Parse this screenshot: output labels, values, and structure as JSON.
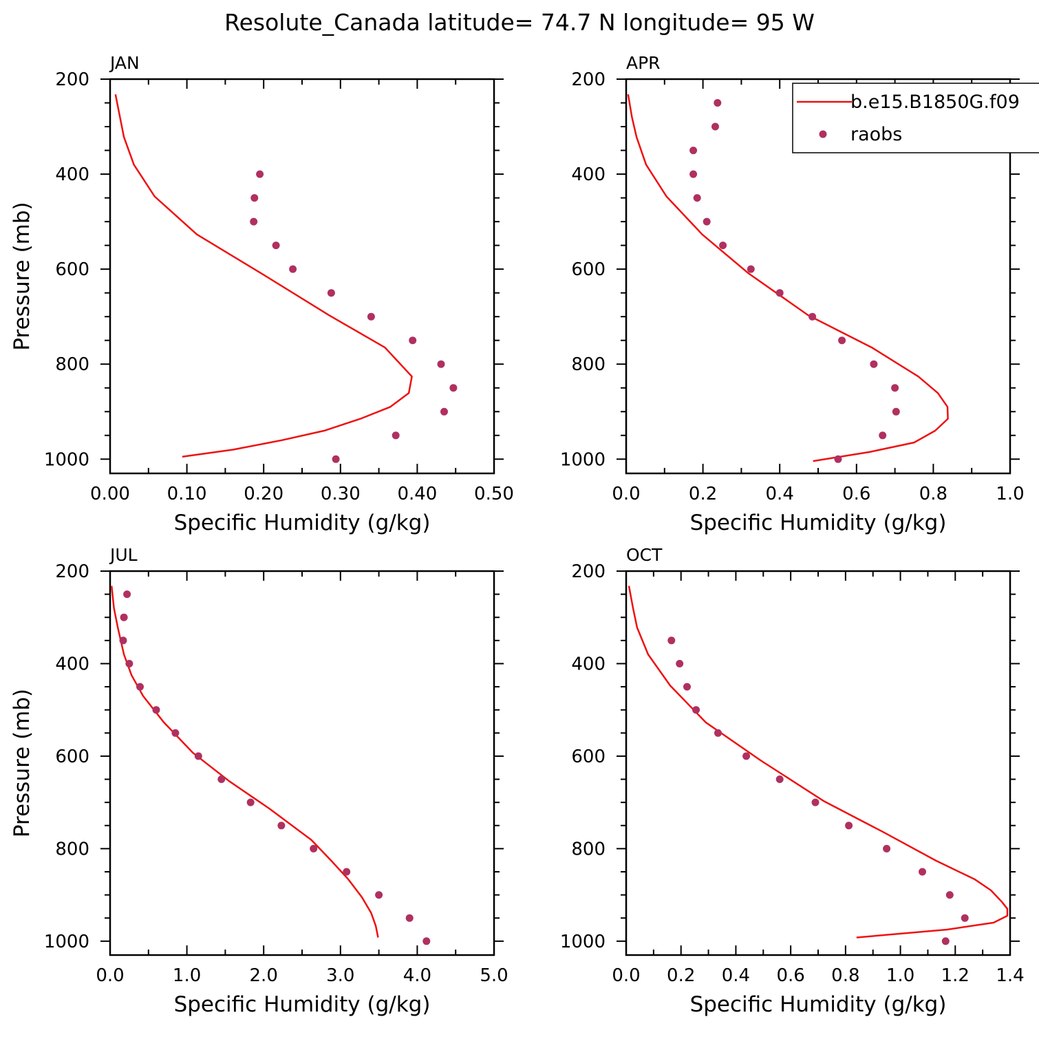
{
  "figure": {
    "title": "Resolute_Canada  latitude= 74.7 N longitude= 95 W"
  },
  "colors": {
    "model": "#ee1111",
    "obs": "#b03060"
  },
  "legend": {
    "model_label": "b.e15.B1850G.f09",
    "obs_label": "raobs",
    "placement": "top-right (APR panel)"
  },
  "chart_data": [
    {
      "type": "line",
      "panel_label": "JAN",
      "xlabel": "Specific Humidity (g/kg)",
      "ylabel": "Pressure (mb)",
      "xlim": [
        0,
        0.5
      ],
      "ylim": [
        200,
        1030
      ],
      "y_inverted": true,
      "xticks": [
        "0.00",
        "0.10",
        "0.20",
        "0.30",
        "0.40",
        "0.50"
      ],
      "yticks": [
        "200",
        "400",
        "600",
        "800",
        "1000"
      ],
      "series": [
        {
          "name": "b.e15.B1850G.f09",
          "style": "line",
          "x": [
            0.007,
            0.018,
            0.031,
            0.058,
            0.113,
            0.197,
            0.285,
            0.358,
            0.393,
            0.389,
            0.365,
            0.326,
            0.279,
            0.224,
            0.16,
            0.094
          ],
          "y": [
            232,
            322,
            380,
            447,
            527,
            609,
            697,
            765,
            826,
            861,
            890,
            915,
            940,
            960,
            980,
            995
          ]
        },
        {
          "name": "raobs",
          "style": "scatter",
          "x": [
            0.195,
            0.188,
            0.187,
            0.216,
            0.238,
            0.288,
            0.34,
            0.394,
            0.431,
            0.447,
            0.435,
            0.372,
            0.294
          ],
          "y": [
            400,
            450,
            500,
            550,
            600,
            650,
            700,
            750,
            800,
            850,
            900,
            950,
            1000
          ]
        }
      ]
    },
    {
      "type": "line",
      "panel_label": "APR",
      "xlabel": "Specific Humidity (g/kg)",
      "ylabel": "",
      "xlim": [
        0,
        1.0
      ],
      "ylim": [
        200,
        1030
      ],
      "y_inverted": true,
      "xticks": [
        "0.0",
        "0.2",
        "0.4",
        "0.6",
        "0.8",
        "1.0"
      ],
      "yticks": [
        "200",
        "400",
        "600",
        "800",
        "1000"
      ],
      "series": [
        {
          "name": "b.e15.B1850G.f09",
          "style": "line",
          "x": [
            0.005,
            0.015,
            0.027,
            0.052,
            0.105,
            0.198,
            0.319,
            0.474,
            0.64,
            0.761,
            0.812,
            0.837,
            0.838,
            0.805,
            0.75,
            0.634,
            0.487
          ],
          "y": [
            232,
            280,
            322,
            380,
            447,
            527,
            609,
            697,
            765,
            826,
            861,
            890,
            915,
            940,
            965,
            985,
            1004
          ]
        },
        {
          "name": "raobs",
          "style": "scatter",
          "x": [
            0.238,
            0.232,
            0.175,
            0.175,
            0.185,
            0.21,
            0.252,
            0.325,
            0.4,
            0.485,
            0.562,
            0.645,
            0.7,
            0.703,
            0.668,
            0.552
          ],
          "y": [
            250,
            300,
            350,
            400,
            450,
            500,
            550,
            600,
            650,
            700,
            750,
            800,
            850,
            900,
            950,
            1000
          ]
        }
      ]
    },
    {
      "type": "line",
      "panel_label": "JUL",
      "xlabel": "Specific Humidity (g/kg)",
      "ylabel": "Pressure (mb)",
      "xlim": [
        0,
        5.0
      ],
      "ylim": [
        200,
        1030
      ],
      "y_inverted": true,
      "xticks": [
        "0.0",
        "1.0",
        "2.0",
        "3.0",
        "4.0",
        "5.0"
      ],
      "yticks": [
        "200",
        "400",
        "600",
        "800",
        "1000"
      ],
      "series": [
        {
          "name": "b.e15.B1850G.f09",
          "style": "line",
          "x": [
            0.02,
            0.05,
            0.1,
            0.18,
            0.28,
            0.43,
            0.7,
            1.08,
            1.55,
            2.08,
            2.62,
            2.88,
            3.1,
            3.28,
            3.4,
            3.46,
            3.49
          ],
          "y": [
            232,
            280,
            322,
            380,
            425,
            470,
            527,
            593,
            654,
            714,
            781,
            826,
            866,
            905,
            939,
            967,
            992
          ]
        },
        {
          "name": "raobs",
          "style": "scatter",
          "x": [
            0.22,
            0.18,
            0.17,
            0.25,
            0.39,
            0.6,
            0.85,
            1.15,
            1.45,
            1.83,
            2.23,
            2.65,
            3.08,
            3.5,
            3.9,
            4.12
          ],
          "y": [
            250,
            300,
            350,
            400,
            450,
            500,
            550,
            600,
            650,
            700,
            750,
            800,
            850,
            900,
            950,
            1000
          ]
        }
      ]
    },
    {
      "type": "line",
      "panel_label": "OCT",
      "xlabel": "Specific Humidity (g/kg)",
      "ylabel": "",
      "xlim": [
        0,
        1.4
      ],
      "ylim": [
        200,
        1030
      ],
      "y_inverted": true,
      "xticks": [
        "0.0",
        "0.2",
        "0.4",
        "0.6",
        "0.8",
        "1.0",
        "1.2",
        "1.4"
      ],
      "yticks": [
        "200",
        "400",
        "600",
        "800",
        "1000"
      ],
      "series": [
        {
          "name": "b.e15.B1850G.f09",
          "style": "line",
          "x": [
            0.01,
            0.025,
            0.04,
            0.08,
            0.16,
            0.29,
            0.49,
            0.72,
            0.94,
            1.13,
            1.27,
            1.33,
            1.37,
            1.39,
            1.39,
            1.34,
            1.17,
            0.84
          ],
          "y": [
            232,
            280,
            322,
            380,
            447,
            527,
            609,
            697,
            765,
            826,
            866,
            890,
            915,
            930,
            945,
            960,
            975,
            992
          ]
        },
        {
          "name": "raobs",
          "style": "scatter",
          "x": [
            0.165,
            0.195,
            0.222,
            0.255,
            0.335,
            0.438,
            0.56,
            0.69,
            0.812,
            0.95,
            1.08,
            1.18,
            1.235,
            1.165
          ],
          "y": [
            350,
            400,
            450,
            500,
            550,
            600,
            650,
            700,
            750,
            800,
            850,
            900,
            950,
            1000
          ]
        }
      ]
    }
  ]
}
